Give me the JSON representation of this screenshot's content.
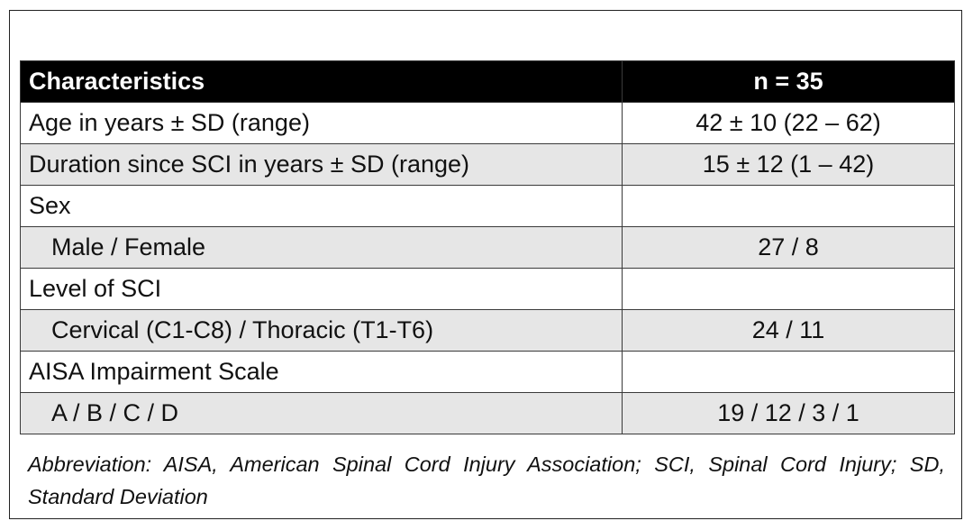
{
  "table": {
    "header": {
      "label": "Characteristics",
      "value": "n = 35"
    },
    "rows": [
      {
        "label": "Age in years ± SD (range)",
        "value": "42 ± 10 (22 – 62)",
        "shaded": false,
        "indent": false
      },
      {
        "label": "Duration since SCI in years ± SD (range)",
        "value": "15 ± 12 (1 – 42)",
        "shaded": true,
        "indent": false
      },
      {
        "label": "Sex",
        "value": "",
        "shaded": false,
        "indent": false
      },
      {
        "label": "Male / Female",
        "value": "27 / 8",
        "shaded": true,
        "indent": true
      },
      {
        "label": "Level of SCI",
        "value": "",
        "shaded": false,
        "indent": false
      },
      {
        "label": "Cervical (C1-C8) / Thoracic (T1-T6)",
        "value": "24 / 11",
        "shaded": true,
        "indent": true
      },
      {
        "label": "AISA Impairment Scale",
        "value": "",
        "shaded": false,
        "indent": false
      },
      {
        "label": "A / B / C / D",
        "value": "19 / 12 / 3 / 1",
        "shaded": true,
        "indent": true
      }
    ]
  },
  "footnote": "Abbreviation: AISA, American Spinal Cord Injury Association; SCI, Spinal Cord Injury; SD, Standard Deviation",
  "colors": {
    "header_background": "#000000",
    "header_text": "#ffffff",
    "shaded_row": "#e6e6e6",
    "border": "#3a3a3a"
  }
}
